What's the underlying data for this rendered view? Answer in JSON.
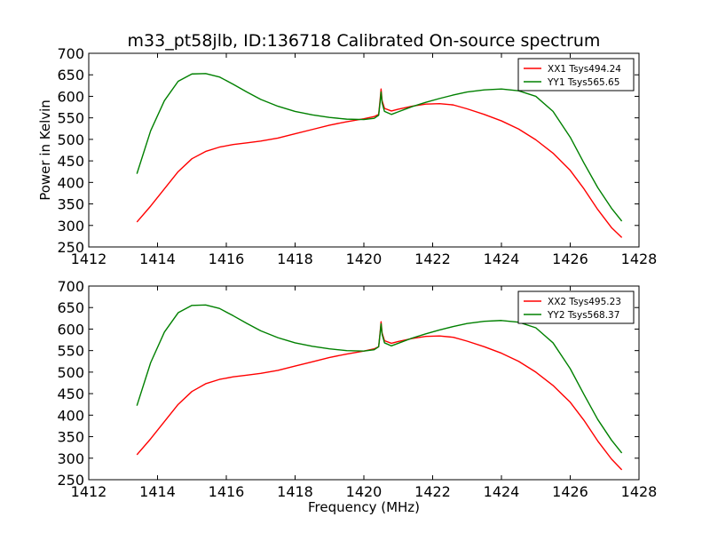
{
  "figure": {
    "title": "m33_pt58jlb, ID:136718 Calibrated On-source spectrum",
    "colors": {
      "xx": "#ff0000",
      "yy": "#008000",
      "axes": "#000000",
      "background": "#ffffff"
    }
  },
  "chart_data": [
    {
      "type": "line",
      "title": "m33_pt58jlb, ID:136718 Calibrated On-source spectrum",
      "xlabel": "",
      "ylabel": "Power in Kelvin",
      "xlim": [
        1412,
        1428
      ],
      "ylim": [
        250,
        700
      ],
      "xticks": [
        1412,
        1414,
        1416,
        1418,
        1420,
        1422,
        1424,
        1426,
        1428
      ],
      "yticks": [
        250,
        300,
        350,
        400,
        450,
        500,
        550,
        600,
        650,
        700
      ],
      "grid": false,
      "legend_position": "top-right",
      "series": [
        {
          "name": "XX1 Tsys494.24",
          "color": "#ff0000",
          "x": [
            1413.4,
            1413.8,
            1414.2,
            1414.6,
            1415.0,
            1415.4,
            1415.8,
            1416.2,
            1416.6,
            1417.0,
            1417.5,
            1418.0,
            1418.5,
            1419.0,
            1419.5,
            1420.0,
            1420.3,
            1420.43,
            1420.47,
            1420.5,
            1420.53,
            1420.6,
            1420.8,
            1421.0,
            1421.4,
            1421.8,
            1422.2,
            1422.6,
            1423.0,
            1423.5,
            1424.0,
            1424.5,
            1425.0,
            1425.5,
            1426.0,
            1426.4,
            1426.8,
            1427.2,
            1427.5
          ],
          "y": [
            308,
            345,
            385,
            425,
            455,
            472,
            482,
            488,
            492,
            496,
            503,
            513,
            523,
            533,
            541,
            548,
            553,
            558,
            590,
            617,
            590,
            572,
            566,
            570,
            577,
            582,
            583,
            580,
            571,
            558,
            543,
            524,
            499,
            468,
            428,
            385,
            337,
            295,
            272
          ]
        },
        {
          "name": "YY1 Tsys565.65",
          "color": "#008000",
          "x": [
            1413.4,
            1413.8,
            1414.2,
            1414.6,
            1415.0,
            1415.4,
            1415.8,
            1416.2,
            1416.6,
            1417.0,
            1417.5,
            1418.0,
            1418.5,
            1419.0,
            1419.5,
            1420.0,
            1420.3,
            1420.43,
            1420.47,
            1420.5,
            1420.53,
            1420.6,
            1420.8,
            1421.0,
            1421.4,
            1421.8,
            1422.2,
            1422.6,
            1423.0,
            1423.5,
            1424.0,
            1424.5,
            1425.0,
            1425.5,
            1426.0,
            1426.4,
            1426.8,
            1427.2,
            1427.5
          ],
          "y": [
            420,
            520,
            590,
            635,
            652,
            653,
            645,
            628,
            610,
            593,
            577,
            565,
            557,
            551,
            547,
            546,
            549,
            556,
            585,
            610,
            585,
            565,
            558,
            564,
            576,
            586,
            595,
            603,
            610,
            615,
            617,
            613,
            600,
            565,
            505,
            445,
            388,
            340,
            310
          ]
        }
      ]
    },
    {
      "type": "line",
      "title": "",
      "xlabel": "Frequency (MHz)",
      "ylabel": "",
      "xlim": [
        1412,
        1428
      ],
      "ylim": [
        250,
        700
      ],
      "xticks": [
        1412,
        1414,
        1416,
        1418,
        1420,
        1422,
        1424,
        1426,
        1428
      ],
      "yticks": [
        250,
        300,
        350,
        400,
        450,
        500,
        550,
        600,
        650,
        700
      ],
      "grid": false,
      "legend_position": "top-right",
      "series": [
        {
          "name": "XX2 Tsys495.23",
          "color": "#ff0000",
          "x": [
            1413.4,
            1413.8,
            1414.2,
            1414.6,
            1415.0,
            1415.4,
            1415.8,
            1416.2,
            1416.6,
            1417.0,
            1417.5,
            1418.0,
            1418.5,
            1419.0,
            1419.5,
            1420.0,
            1420.3,
            1420.43,
            1420.47,
            1420.5,
            1420.53,
            1420.6,
            1420.8,
            1421.0,
            1421.4,
            1421.8,
            1422.2,
            1422.6,
            1423.0,
            1423.5,
            1424.0,
            1424.5,
            1425.0,
            1425.5,
            1426.0,
            1426.4,
            1426.8,
            1427.2,
            1427.5
          ],
          "y": [
            308,
            345,
            385,
            425,
            455,
            473,
            483,
            489,
            493,
            497,
            504,
            514,
            524,
            534,
            542,
            549,
            554,
            559,
            591,
            617,
            591,
            573,
            567,
            571,
            578,
            583,
            584,
            581,
            572,
            559,
            544,
            525,
            500,
            469,
            430,
            388,
            340,
            298,
            273
          ]
        },
        {
          "name": "YY2 Tsys568.37",
          "color": "#008000",
          "x": [
            1413.4,
            1413.8,
            1414.2,
            1414.6,
            1415.0,
            1415.4,
            1415.8,
            1416.2,
            1416.6,
            1417.0,
            1417.5,
            1418.0,
            1418.5,
            1419.0,
            1419.5,
            1420.0,
            1420.3,
            1420.43,
            1420.47,
            1420.5,
            1420.53,
            1420.6,
            1420.8,
            1421.0,
            1421.4,
            1421.8,
            1422.2,
            1422.6,
            1423.0,
            1423.5,
            1424.0,
            1424.5,
            1425.0,
            1425.5,
            1426.0,
            1426.4,
            1426.8,
            1427.2,
            1427.5
          ],
          "y": [
            422,
            522,
            593,
            638,
            655,
            656,
            648,
            631,
            613,
            596,
            580,
            568,
            560,
            554,
            550,
            549,
            552,
            559,
            588,
            612,
            588,
            568,
            561,
            567,
            579,
            589,
            598,
            606,
            613,
            618,
            620,
            616,
            603,
            568,
            508,
            448,
            390,
            342,
            312
          ]
        }
      ]
    }
  ]
}
